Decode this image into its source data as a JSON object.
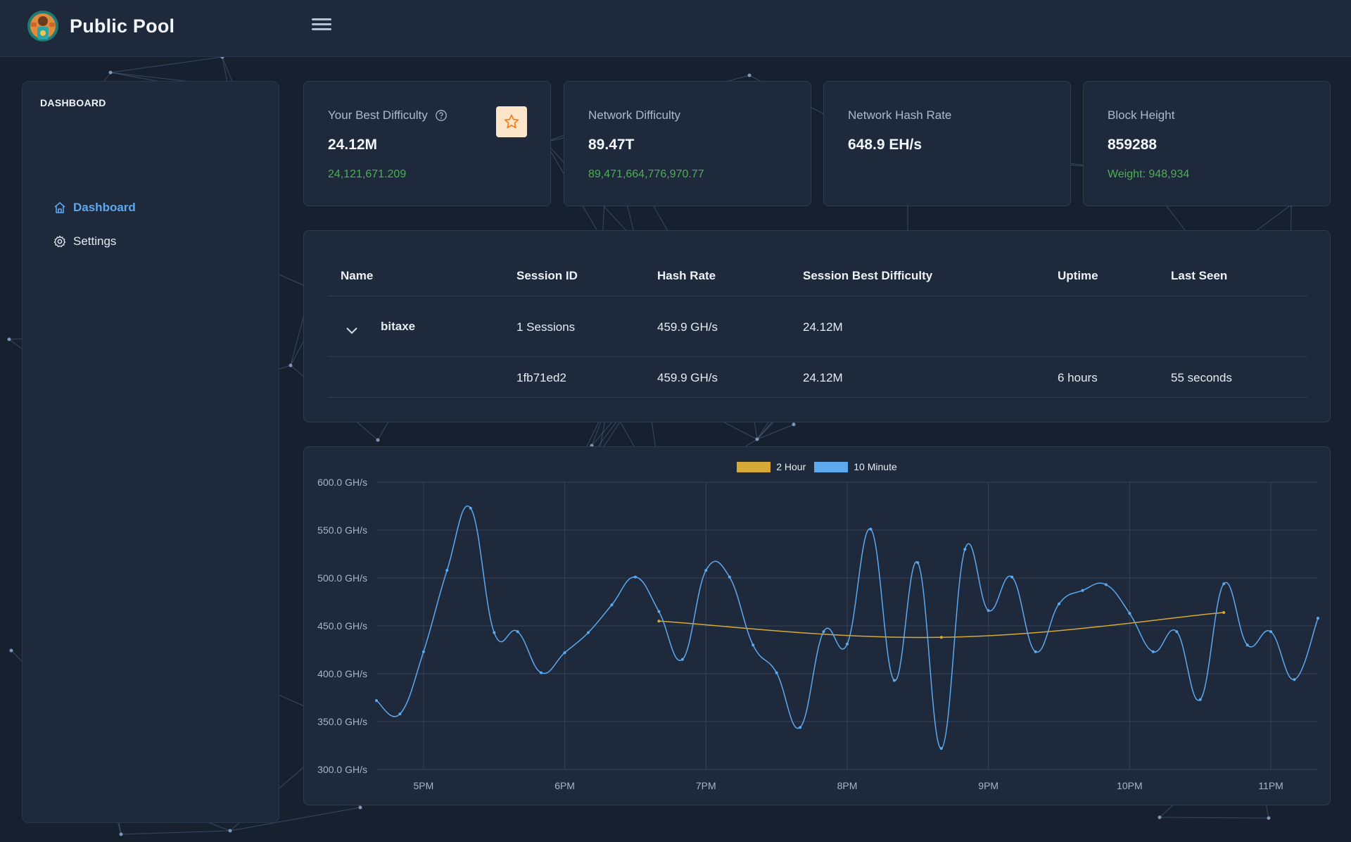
{
  "app": {
    "title": "Public Pool"
  },
  "sidebar": {
    "section": "DASHBOARD",
    "items": [
      {
        "label": "Dashboard",
        "icon": "home-icon",
        "active": true
      },
      {
        "label": "Settings",
        "icon": "gear-icon",
        "active": false
      }
    ]
  },
  "cards": [
    {
      "label": "Your Best Difficulty",
      "value": "24.12M",
      "sub": "24,121,671.209"
    },
    {
      "label": "Network Difficulty",
      "value": "89.47T",
      "sub": "89,471,664,776,970.77"
    },
    {
      "label": "Network Hash Rate",
      "value": "648.9 EH/s",
      "sub": ""
    },
    {
      "label": "Block Height",
      "value": "859288",
      "sub": "Weight: 948,934"
    }
  ],
  "workers": {
    "headers": [
      "Name",
      "Session ID",
      "Hash Rate",
      "Session Best Difficulty",
      "Uptime",
      "Last Seen"
    ],
    "group": {
      "name": "bitaxe",
      "sessions": "1 Sessions",
      "hash_rate": "459.9 GH/s",
      "best_difficulty": "24.12M"
    },
    "session": {
      "id": "1fb71ed2",
      "hash_rate": "459.9 GH/s",
      "best_difficulty": "24.12M",
      "uptime": "6 hours",
      "last_seen": "55 seconds"
    }
  },
  "colors": {
    "accent": "#5aa8f2",
    "two_hour": "#d6a936",
    "ten_minute": "#5da9ef",
    "success": "#4caf50"
  },
  "chart_data": {
    "type": "line",
    "ylim": [
      300,
      600
    ],
    "y_ticks": [
      {
        "value": 300,
        "label": "300.0 GH/s"
      },
      {
        "value": 350,
        "label": "350.0 GH/s"
      },
      {
        "value": 400,
        "label": "400.0 GH/s"
      },
      {
        "value": 450,
        "label": "450.0 GH/s"
      },
      {
        "value": 500,
        "label": "500.0 GH/s"
      },
      {
        "value": 550,
        "label": "550.0 GH/s"
      },
      {
        "value": 600,
        "label": "600.0 GH/s"
      }
    ],
    "xlim": [
      "16:40",
      "23:20"
    ],
    "x_ticks": [
      {
        "value": "17:00",
        "label": "5PM"
      },
      {
        "value": "18:00",
        "label": "6PM"
      },
      {
        "value": "19:00",
        "label": "7PM"
      },
      {
        "value": "20:00",
        "label": "8PM"
      },
      {
        "value": "21:00",
        "label": "9PM"
      },
      {
        "value": "22:00",
        "label": "10PM"
      },
      {
        "value": "23:00",
        "label": "11PM"
      }
    ],
    "grid": true,
    "legend": "top-center",
    "series": [
      {
        "name": "2 Hour",
        "color": "#d6a936",
        "x": [
          "18:40",
          "20:40",
          "22:40"
        ],
        "values": [
          455,
          438,
          464
        ]
      },
      {
        "name": "10 Minute",
        "color": "#5da9ef",
        "x": [
          "16:40",
          "16:50",
          "17:00",
          "17:10",
          "17:20",
          "17:30",
          "17:40",
          "17:50",
          "18:00",
          "18:10",
          "18:20",
          "18:30",
          "18:40",
          "18:50",
          "19:00",
          "19:10",
          "19:20",
          "19:30",
          "19:40",
          "19:50",
          "20:00",
          "20:10",
          "20:20",
          "20:30",
          "20:40",
          "20:50",
          "21:00",
          "21:10",
          "21:20",
          "21:30",
          "21:40",
          "21:50",
          "22:00",
          "22:10",
          "22:20",
          "22:30",
          "22:40",
          "22:50",
          "23:00",
          "23:10",
          "23:20"
        ],
        "values": [
          372,
          358,
          423,
          508,
          573,
          443,
          444,
          401,
          422,
          443,
          472,
          501,
          465,
          415,
          508,
          501,
          430,
          401,
          344,
          444,
          431,
          551,
          393,
          516,
          322,
          530,
          466,
          501,
          423,
          473,
          487,
          493,
          463,
          423,
          444,
          373,
          494,
          430,
          444,
          394,
          458
        ]
      }
    ]
  }
}
